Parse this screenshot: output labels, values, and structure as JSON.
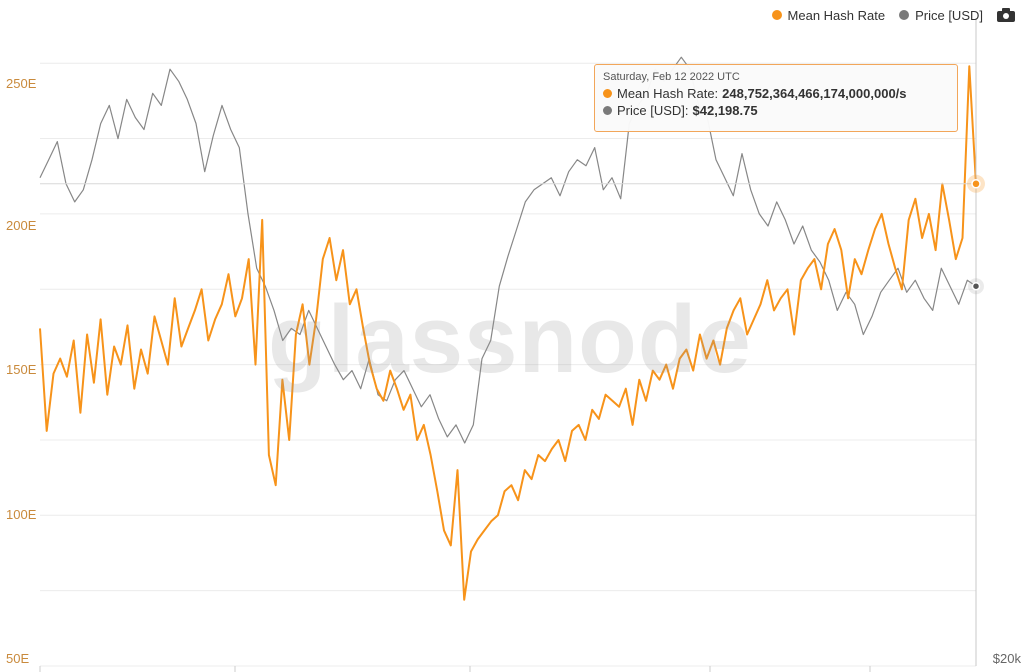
{
  "legend": {
    "items": [
      {
        "label": "Mean Hash Rate",
        "color": "#f7931a"
      },
      {
        "label": "Price [USD]",
        "color": "#7a7a7a"
      }
    ],
    "camera_icon": "camera-icon"
  },
  "watermark": "glassnode",
  "tooltip": {
    "date": "Saturday, Feb 12 2022 UTC",
    "rows": [
      {
        "label": "Mean Hash Rate:",
        "value": "248,752,364,466,174,000,000/s",
        "color": "#f7931a"
      },
      {
        "label": "Price [USD]:",
        "value": "$42,198.75",
        "color": "#7a7a7a"
      }
    ]
  },
  "chart_data": {
    "type": "line",
    "title": "",
    "xlabel": "",
    "ylabel": "",
    "ylim": [
      50,
      265
    ],
    "left_axis_ticks": [
      "250E",
      "200E",
      "150E",
      "100E",
      "50E"
    ],
    "left_axis_values": [
      250,
      200,
      150,
      100,
      50
    ],
    "right_axis_ticks": [
      "$20k"
    ],
    "grid": true,
    "legend_position": "top-right",
    "series": [
      {
        "name": "Mean Hash Rate",
        "axis": "left",
        "color": "#f7931a",
        "values": [
          162,
          128,
          147,
          152,
          146,
          158,
          134,
          160,
          144,
          165,
          140,
          156,
          150,
          163,
          142,
          155,
          147,
          166,
          158,
          150,
          172,
          156,
          162,
          168,
          175,
          158,
          165,
          170,
          180,
          166,
          172,
          185,
          150,
          198,
          120,
          110,
          145,
          125,
          160,
          170,
          150,
          165,
          185,
          192,
          178,
          188,
          170,
          175,
          162,
          150,
          142,
          138,
          148,
          142,
          135,
          140,
          125,
          130,
          120,
          108,
          95,
          90,
          115,
          72,
          88,
          92,
          95,
          98,
          100,
          108,
          110,
          105,
          115,
          112,
          120,
          118,
          122,
          125,
          118,
          128,
          130,
          125,
          135,
          132,
          140,
          138,
          136,
          142,
          130,
          145,
          138,
          148,
          145,
          150,
          142,
          152,
          155,
          148,
          160,
          152,
          158,
          150,
          162,
          168,
          172,
          160,
          165,
          170,
          178,
          168,
          172,
          175,
          160,
          178,
          182,
          185,
          175,
          190,
          195,
          188,
          172,
          185,
          180,
          188,
          195,
          200,
          190,
          182,
          175,
          198,
          205,
          192,
          200,
          188,
          210,
          198,
          185,
          192,
          249,
          210
        ],
        "x_start": "",
        "x_end": "2022-02-12"
      },
      {
        "name": "Price [USD]",
        "axis": "right",
        "color": "#7a7a7a",
        "values": [
          212,
          218,
          224,
          210,
          204,
          208,
          218,
          230,
          236,
          225,
          238,
          232,
          228,
          240,
          236,
          248,
          244,
          238,
          230,
          214,
          226,
          236,
          228,
          222,
          200,
          182,
          176,
          168,
          158,
          162,
          160,
          168,
          162,
          156,
          150,
          145,
          148,
          142,
          152,
          140,
          138,
          145,
          148,
          142,
          136,
          140,
          132,
          126,
          130,
          124,
          130,
          152,
          158,
          176,
          186,
          195,
          204,
          208,
          210,
          212,
          206,
          214,
          218,
          216,
          222,
          208,
          212,
          205,
          230,
          236,
          240,
          248,
          244,
          248,
          252,
          248,
          236,
          232,
          218,
          212,
          206,
          220,
          208,
          200,
          196,
          204,
          198,
          190,
          196,
          188,
          184,
          178,
          168,
          174,
          170,
          160,
          166,
          174,
          178,
          182,
          174,
          178,
          172,
          168,
          182,
          176,
          170,
          178,
          176
        ],
        "x_end": "2022-02-12"
      }
    ],
    "highlight": {
      "date": "Saturday, Feb 12 2022 UTC",
      "mean_hash_rate": 248.75,
      "price_usd": 42198.75
    }
  }
}
